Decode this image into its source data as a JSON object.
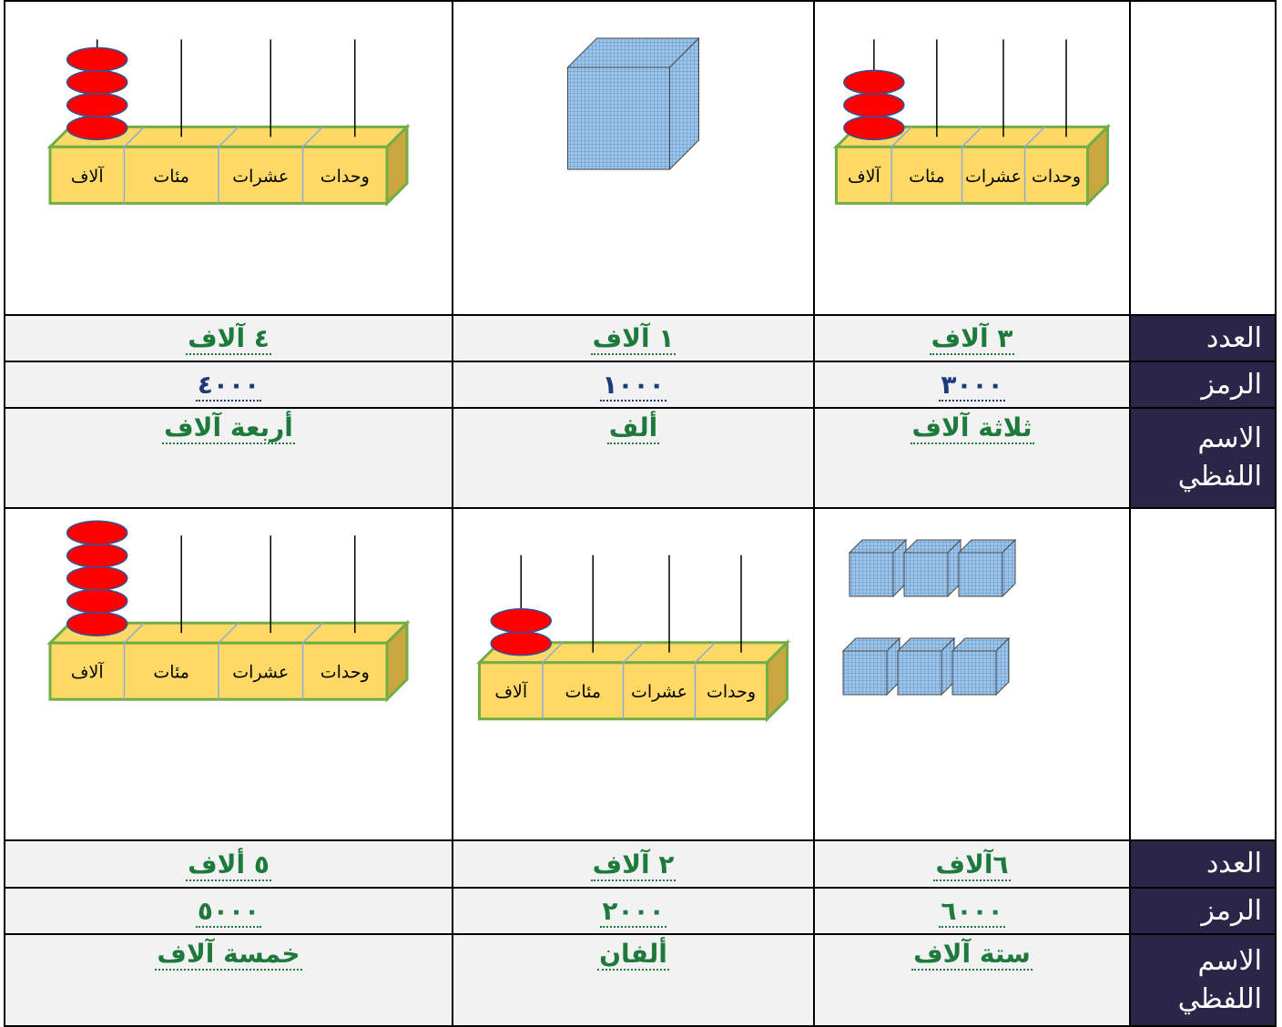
{
  "place_labels": [
    "آلاف",
    "مئات",
    "عشرات",
    "وحدات"
  ],
  "row_headers": {
    "number": "العدد",
    "symbol": "الرمز",
    "word_name": "الاسم اللفظي"
  },
  "sections": [
    {
      "cells": [
        {
          "visual": {
            "kind": "abacus",
            "beads": 3
          },
          "number": "٣ آلاف",
          "symbol": "٣٠٠٠",
          "word_name": "ثلاثة آلاف"
        },
        {
          "visual": {
            "kind": "cubes",
            "count": 1
          },
          "number": "١ آلاف",
          "symbol": "١٠٠٠",
          "word_name": "ألف"
        },
        {
          "visual": {
            "kind": "abacus",
            "beads": 4
          },
          "number": "٤ آلاف",
          "symbol": "٤٠٠٠",
          "word_name": "أربعة آلاف"
        }
      ]
    },
    {
      "cells": [
        {
          "visual": {
            "kind": "cubes",
            "count": 6
          },
          "number": "٦آلاف",
          "symbol": "٦٠٠٠",
          "word_name": "ستة آلاف"
        },
        {
          "visual": {
            "kind": "abacus",
            "beads": 2
          },
          "number": "٢ آلاف",
          "symbol": "٢٠٠٠",
          "word_name": "ألفان"
        },
        {
          "visual": {
            "kind": "abacus",
            "beads": 5
          },
          "number": "٥ ألاف",
          "symbol": "٥٠٠٠",
          "word_name": "خمسة آلاف"
        }
      ]
    }
  ]
}
